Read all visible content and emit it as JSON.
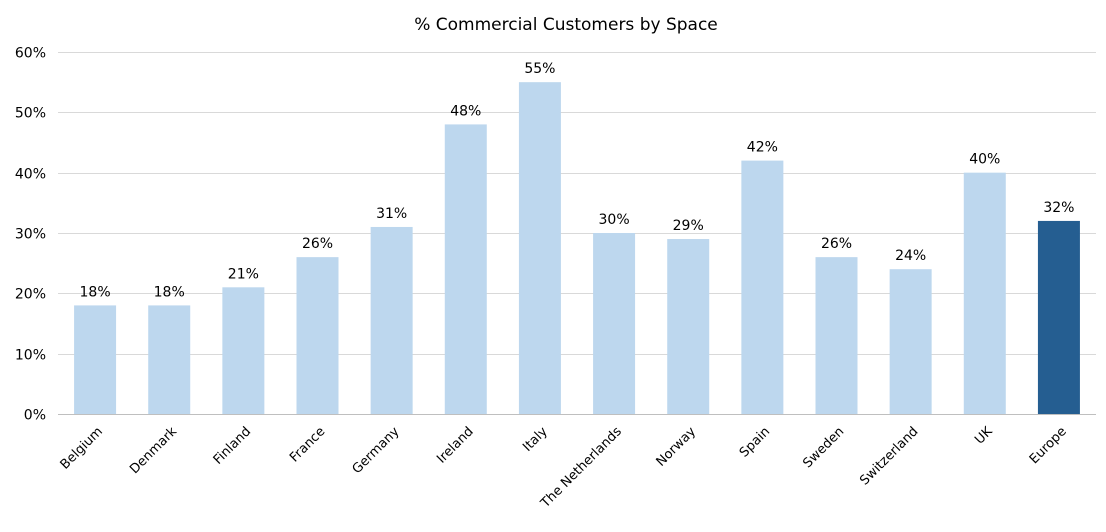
{
  "chart_data": {
    "type": "bar",
    "title": "% Commercial Customers by Space",
    "xlabel": "",
    "ylabel": "",
    "categories": [
      "Belgium",
      "Denmark",
      "Finland",
      "France",
      "Germany",
      "Ireland",
      "Italy",
      "The Netherlands",
      "Norway",
      "Spain",
      "Sweden",
      "Switzerland",
      "UK",
      "Europe"
    ],
    "values": [
      18,
      18,
      21,
      26,
      31,
      48,
      55,
      30,
      29,
      42,
      26,
      24,
      40,
      32
    ],
    "data_labels": [
      "18%",
      "18%",
      "21%",
      "26%",
      "31%",
      "48%",
      "55%",
      "30%",
      "29%",
      "42%",
      "26%",
      "24%",
      "40%",
      "32%"
    ],
    "ylim": [
      0,
      60
    ],
    "yticks": [
      0,
      10,
      20,
      30,
      40,
      50,
      60
    ],
    "ytick_labels": [
      "0%",
      "10%",
      "20%",
      "30%",
      "40%",
      "50%",
      "60%"
    ],
    "grid": true,
    "legend": "none",
    "colors": {
      "bar": "#bdd7ee",
      "highlight_bar": "#255e91",
      "highlight_category": "Europe"
    }
  }
}
